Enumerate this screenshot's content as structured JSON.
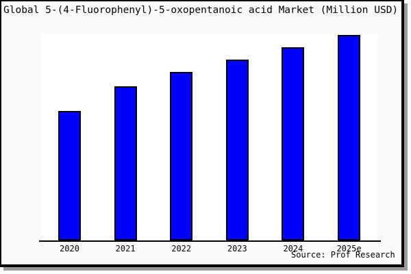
{
  "title": "Global 5-(4-Fluorophenyl)-5-oxopentanoic acid Market (Million USD)",
  "source": "Source: Prof Research",
  "colors": {
    "bar_fill": "#0000ff",
    "bar_border": "#000000",
    "card_background": "#fafafa",
    "plot_background": "#ffffff",
    "frame_border": "#000000",
    "drop_shadow": "#999999",
    "text": "#000000"
  },
  "chart_data": {
    "type": "bar",
    "title": "Global 5-(4-Fluorophenyl)-5-oxopentanoic acid Market (Million USD)",
    "categories": [
      "2020",
      "2021",
      "2022",
      "2023",
      "2024",
      "2025e"
    ],
    "values": [
      63,
      75,
      82,
      88,
      94,
      100
    ],
    "values_note": "No numeric y-axis, gridlines, or data labels are shown; values are relative bar heights normalized so 2025e = 100",
    "xlabel": "",
    "ylabel": "",
    "ylim": [
      0,
      103
    ],
    "grid": false,
    "legend": false,
    "bar_color": "#0000ff",
    "annotations": [
      "Source: Prof Research"
    ]
  }
}
